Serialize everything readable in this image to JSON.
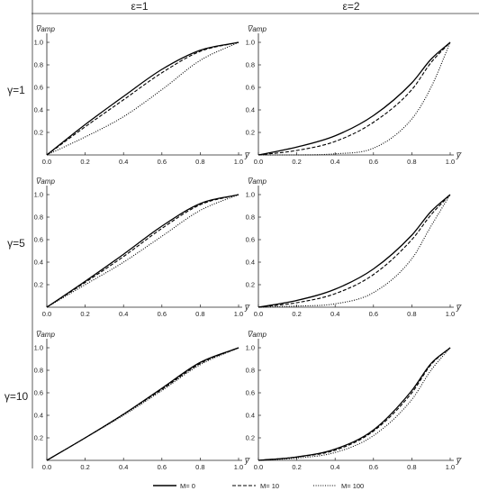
{
  "figure": {
    "col_headers": [
      "ε=1",
      "ε=2"
    ],
    "row_headers": [
      "γ=1",
      "γ=5",
      "γ=10"
    ]
  },
  "legend": [
    {
      "label": "M= 0",
      "dash": "solid"
    },
    {
      "label": "M= 10",
      "dash": "dashed"
    },
    {
      "label": "M= 100",
      "dash": "dotted"
    }
  ],
  "axes": {
    "ylabel": "V̅amp",
    "xlabel": "y̅",
    "xticks": [
      "0.0",
      "0.2",
      "0.4",
      "0.6",
      "0.8",
      "1.0"
    ],
    "yticks": [
      "0.2",
      "0.4",
      "0.6",
      "0.8",
      "1.0"
    ]
  },
  "chart_data": [
    {
      "type": "line",
      "row": "γ=1",
      "col": "ε=1",
      "xlim": [
        0,
        1
      ],
      "ylim": [
        0,
        1
      ],
      "x": [
        0,
        0.2,
        0.4,
        0.6,
        0.8,
        1.0
      ],
      "series": [
        {
          "name": "M= 0",
          "values": [
            0,
            0.27,
            0.52,
            0.76,
            0.93,
            1.0
          ]
        },
        {
          "name": "M= 10",
          "values": [
            0,
            0.25,
            0.49,
            0.73,
            0.92,
            1.0
          ]
        },
        {
          "name": "M= 100",
          "values": [
            0,
            0.16,
            0.34,
            0.58,
            0.84,
            1.0
          ]
        }
      ]
    },
    {
      "type": "line",
      "row": "γ=1",
      "col": "ε=2",
      "xlim": [
        0,
        1
      ],
      "ylim": [
        0,
        1
      ],
      "x": [
        0,
        0.2,
        0.4,
        0.6,
        0.8,
        0.9,
        1.0
      ],
      "series": [
        {
          "name": "M= 0",
          "values": [
            0,
            0.07,
            0.17,
            0.35,
            0.64,
            0.85,
            1.0
          ]
        },
        {
          "name": "M= 10",
          "values": [
            0,
            0.04,
            0.12,
            0.29,
            0.58,
            0.82,
            1.0
          ]
        },
        {
          "name": "M= 100",
          "values": [
            0,
            0,
            0.01,
            0.06,
            0.32,
            0.6,
            1.0
          ]
        }
      ]
    },
    {
      "type": "line",
      "row": "γ=5",
      "col": "ε=1",
      "xlim": [
        0,
        1
      ],
      "ylim": [
        0,
        1
      ],
      "x": [
        0,
        0.2,
        0.4,
        0.6,
        0.8,
        1.0
      ],
      "series": [
        {
          "name": "M= 0",
          "values": [
            0,
            0.23,
            0.47,
            0.72,
            0.92,
            1.0
          ]
        },
        {
          "name": "M= 10",
          "values": [
            0,
            0.22,
            0.45,
            0.7,
            0.91,
            1.0
          ]
        },
        {
          "name": "M= 100",
          "values": [
            0,
            0.2,
            0.4,
            0.63,
            0.86,
            1.0
          ]
        }
      ]
    },
    {
      "type": "line",
      "row": "γ=5",
      "col": "ε=2",
      "xlim": [
        0,
        1
      ],
      "ylim": [
        0,
        1
      ],
      "x": [
        0,
        0.2,
        0.4,
        0.6,
        0.8,
        0.9,
        1.0
      ],
      "series": [
        {
          "name": "M= 0",
          "values": [
            0,
            0.06,
            0.16,
            0.34,
            0.64,
            0.85,
            1.0
          ]
        },
        {
          "name": "M= 10",
          "values": [
            0,
            0.04,
            0.12,
            0.29,
            0.6,
            0.82,
            1.0
          ]
        },
        {
          "name": "M= 100",
          "values": [
            0,
            0.01,
            0.03,
            0.13,
            0.43,
            0.72,
            1.0
          ]
        }
      ]
    },
    {
      "type": "line",
      "row": "γ=10",
      "col": "ε=1",
      "xlim": [
        0,
        1
      ],
      "ylim": [
        0,
        1
      ],
      "x": [
        0,
        0.2,
        0.4,
        0.6,
        0.8,
        1.0
      ],
      "series": [
        {
          "name": "M= 0",
          "values": [
            0,
            0.2,
            0.41,
            0.64,
            0.87,
            1.0
          ]
        },
        {
          "name": "M= 10",
          "values": [
            0,
            0.2,
            0.41,
            0.63,
            0.86,
            1.0
          ]
        },
        {
          "name": "M= 100",
          "values": [
            0,
            0.2,
            0.4,
            0.62,
            0.85,
            1.0
          ]
        }
      ]
    },
    {
      "type": "line",
      "row": "γ=10",
      "col": "ε=2",
      "xlim": [
        0,
        1
      ],
      "ylim": [
        0,
        1
      ],
      "x": [
        0,
        0.2,
        0.4,
        0.6,
        0.8,
        0.9,
        1.0
      ],
      "series": [
        {
          "name": "M= 0",
          "values": [
            0,
            0.03,
            0.1,
            0.27,
            0.62,
            0.86,
            1.0
          ]
        },
        {
          "name": "M= 10",
          "values": [
            0,
            0.03,
            0.09,
            0.26,
            0.6,
            0.85,
            1.0
          ]
        },
        {
          "name": "M= 100",
          "values": [
            0,
            0.02,
            0.07,
            0.22,
            0.54,
            0.8,
            1.0
          ]
        }
      ]
    }
  ]
}
